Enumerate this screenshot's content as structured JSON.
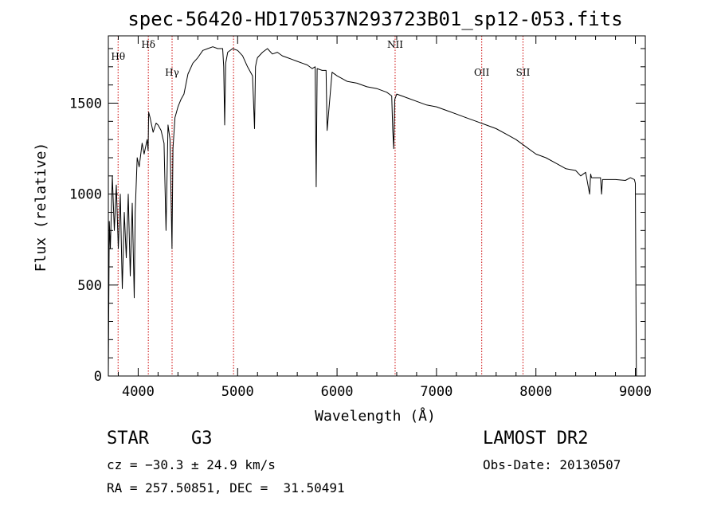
{
  "chart_data": {
    "type": "line",
    "title": "spec-56420-HD170537N293723B01_sp12-053.fits",
    "xlabel": "Wavelength (Å)",
    "ylabel": "Flux (relative)",
    "xlim": [
      3700,
      9100
    ],
    "ylim": [
      0,
      1870
    ],
    "xticks": [
      4000,
      5000,
      6000,
      7000,
      8000,
      9000
    ],
    "yticks": [
      0,
      500,
      1000,
      1500
    ],
    "grid": false,
    "line_color": "#000000",
    "marker_color": "#cc0000",
    "lines": [
      {
        "label": "Hθ",
        "wavelength": 3798
      },
      {
        "label": "Hδ",
        "wavelength": 4102
      },
      {
        "label": "Hγ",
        "wavelength": 4341
      },
      {
        "label": "",
        "wavelength": 4959
      },
      {
        "label": "NII",
        "wavelength": 6584
      },
      {
        "label": "OII",
        "wavelength": 7455
      },
      {
        "label": "SII",
        "wavelength": 7870
      }
    ],
    "series": [
      {
        "x": [
          3700,
          3710,
          3720,
          3740,
          3760,
          3780,
          3800,
          3820,
          3840,
          3860,
          3880,
          3900,
          3920,
          3940,
          3960,
          3970,
          3990,
          4010,
          4040,
          4060,
          4090,
          4100,
          4105,
          4120,
          4150,
          4180,
          4200,
          4230,
          4260,
          4280,
          4300,
          4320,
          4340,
          4350,
          4370,
          4400,
          4430,
          4460,
          4500,
          4550,
          4600,
          4650,
          4700,
          4750,
          4800,
          4850,
          4860,
          4870,
          4880,
          4900,
          4950,
          5000,
          5050,
          5100,
          5150,
          5170,
          5180,
          5190,
          5200,
          5250,
          5300,
          5350,
          5400,
          5450,
          5500,
          5550,
          5600,
          5650,
          5700,
          5750,
          5780,
          5790,
          5800,
          5850,
          5890,
          5900,
          5950,
          6000,
          6100,
          6200,
          6300,
          6400,
          6500,
          6550,
          6560,
          6570,
          6580,
          6600,
          6700,
          6800,
          6900,
          7000,
          7100,
          7200,
          7300,
          7400,
          7500,
          7600,
          7700,
          7800,
          7900,
          8000,
          8100,
          8200,
          8300,
          8400,
          8450,
          8500,
          8540,
          8550,
          8560,
          8600,
          8650,
          8660,
          8670,
          8700,
          8800,
          8900,
          8950,
          8990,
          9000,
          9010
        ],
        "y": [
          0,
          850,
          700,
          1100,
          800,
          1050,
          700,
          1000,
          480,
          900,
          650,
          1000,
          550,
          950,
          430,
          900,
          1200,
          1150,
          1280,
          1220,
          1300,
          1240,
          1450,
          1420,
          1340,
          1390,
          1380,
          1350,
          1280,
          800,
          1380,
          1300,
          700,
          1250,
          1420,
          1480,
          1520,
          1550,
          1660,
          1720,
          1750,
          1790,
          1800,
          1810,
          1800,
          1800,
          1700,
          1380,
          1720,
          1780,
          1800,
          1790,
          1760,
          1700,
          1650,
          1360,
          1700,
          1730,
          1750,
          1780,
          1800,
          1770,
          1780,
          1760,
          1750,
          1740,
          1730,
          1720,
          1710,
          1690,
          1700,
          1040,
          1690,
          1680,
          1680,
          1350,
          1670,
          1650,
          1620,
          1610,
          1590,
          1580,
          1560,
          1540,
          1350,
          1250,
          1520,
          1550,
          1530,
          1510,
          1490,
          1480,
          1460,
          1440,
          1420,
          1400,
          1380,
          1360,
          1330,
          1300,
          1260,
          1220,
          1200,
          1170,
          1140,
          1130,
          1100,
          1120,
          1000,
          1110,
          1090,
          1090,
          1090,
          1000,
          1080,
          1080,
          1080,
          1075,
          1090,
          1080,
          1060,
          0
        ]
      }
    ]
  },
  "info": {
    "object_class": "STAR    G3",
    "cz": "cz = −30.3 ± 24.9 km/s",
    "radec": "RA = 257.50851, DEC =  31.50491",
    "survey": "LAMOST DR2",
    "obs_date": "Obs-Date: 20130507"
  }
}
